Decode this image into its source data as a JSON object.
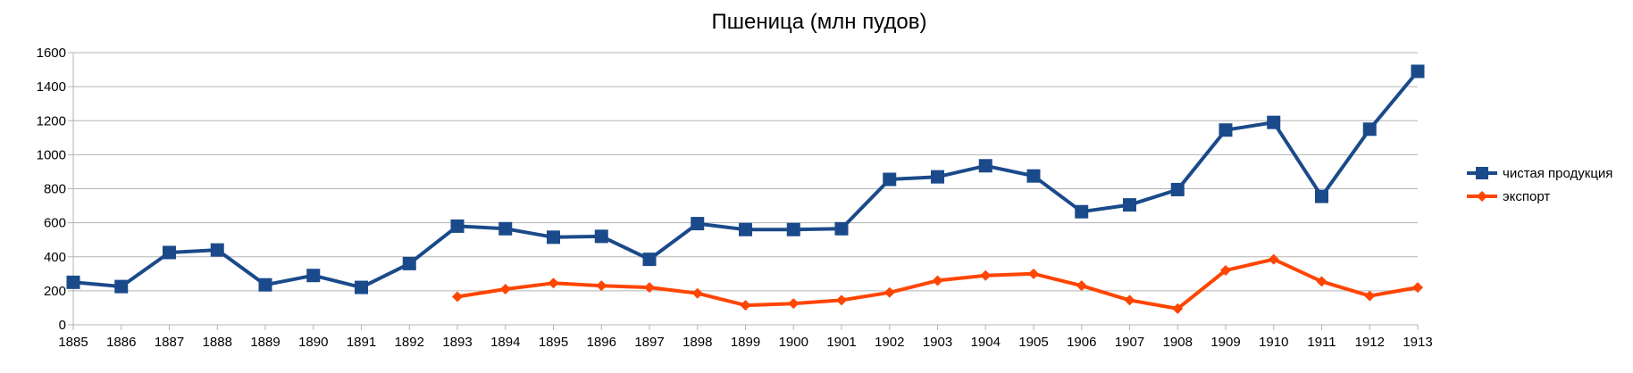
{
  "chart_data": {
    "type": "line",
    "title": "Пшеница (млн пудов)",
    "xlabel": "",
    "ylabel": "",
    "ylim": [
      0,
      1600
    ],
    "yticks": [
      0,
      200,
      400,
      600,
      800,
      1000,
      1200,
      1400,
      1600
    ],
    "grid": true,
    "legend_position": "right",
    "x": [
      1885,
      1886,
      1887,
      1888,
      1889,
      1890,
      1891,
      1892,
      1893,
      1894,
      1895,
      1896,
      1897,
      1898,
      1899,
      1900,
      1901,
      1902,
      1903,
      1904,
      1905,
      1906,
      1907,
      1908,
      1909,
      1910,
      1911,
      1912,
      1913
    ],
    "series": [
      {
        "name": "чистая продукция",
        "color": "#1a4a8a",
        "marker": "square",
        "values": [
          250,
          225,
          425,
          440,
          235,
          290,
          220,
          360,
          580,
          565,
          515,
          520,
          385,
          595,
          560,
          560,
          565,
          855,
          870,
          935,
          875,
          665,
          705,
          795,
          1145,
          1190,
          755,
          1150,
          1490
        ]
      },
      {
        "name": "экспорт",
        "color": "#ff4500",
        "marker": "diamond",
        "values": [
          null,
          null,
          null,
          null,
          null,
          null,
          null,
          null,
          165,
          210,
          245,
          230,
          220,
          185,
          115,
          125,
          145,
          190,
          260,
          290,
          300,
          230,
          145,
          95,
          320,
          385,
          255,
          170,
          220
        ]
      }
    ]
  }
}
